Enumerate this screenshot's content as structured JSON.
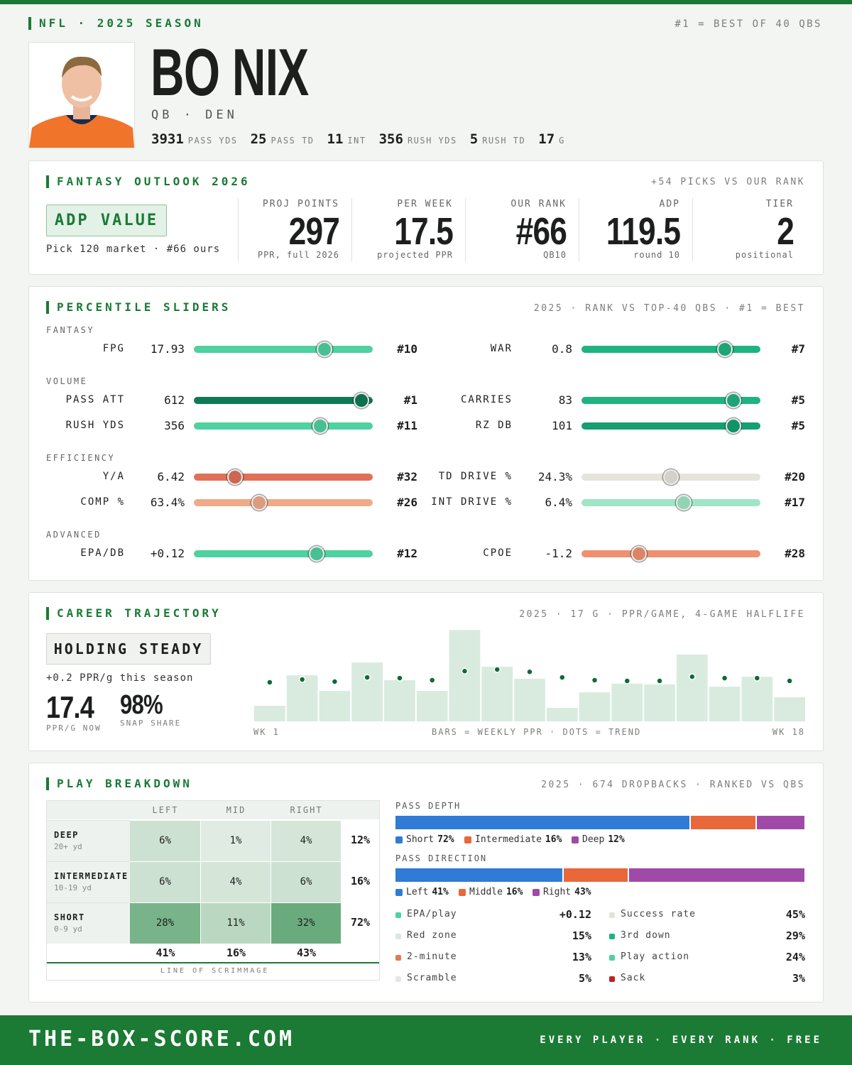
{
  "header": {
    "league": "NFL · 2025 SEASON",
    "rank_note": "#1 = BEST OF 40 QBS",
    "name": "BO NIX",
    "position": "QB · DEN",
    "stats": [
      {
        "value": "3931",
        "label": "PASS YDS"
      },
      {
        "value": "25",
        "label": "PASS TD"
      },
      {
        "value": "11",
        "label": "INT"
      },
      {
        "value": "356",
        "label": "RUSH YDS"
      },
      {
        "value": "5",
        "label": "RUSH TD"
      },
      {
        "value": "17",
        "label": "G"
      }
    ]
  },
  "outlook": {
    "title": "FANTASY OUTLOOK 2026",
    "note": "+54 PICKS VS OUR RANK",
    "badge": "ADP VALUE",
    "badge_sub": "Pick 120 market · #66 ours",
    "metrics": [
      {
        "label": "PROJ POINTS",
        "value": "297",
        "sub": "PPR, full 2026"
      },
      {
        "label": "PER WEEK",
        "value": "17.5",
        "sub": "projected PPR"
      },
      {
        "label": "OUR RANK",
        "value": "#66",
        "sub": "QB10"
      },
      {
        "label": "ADP",
        "value": "119.5",
        "sub": "round 10"
      },
      {
        "label": "TIER",
        "value": "2",
        "sub": "positional"
      }
    ]
  },
  "sliders": {
    "title": "PERCENTILE SLIDERS",
    "note": "2025 · RANK VS TOP-40 QBS · #1 = BEST",
    "groups": [
      {
        "name": "FANTASY",
        "items": [
          {
            "label": "FPG",
            "value": "17.93",
            "rank": "#10",
            "percentile": 77,
            "color": "#4fd1a0"
          },
          {
            "label": "WAR",
            "value": "0.8",
            "rank": "#7",
            "percentile": 85,
            "color": "#1fb380"
          }
        ]
      },
      {
        "name": "VOLUME",
        "items": [
          {
            "label": "PASS ATT",
            "value": "612",
            "rank": "#1",
            "percentile": 100,
            "color": "#0e7a55"
          },
          {
            "label": "CARRIES",
            "value": "83",
            "rank": "#5",
            "percentile": 90,
            "color": "#1fb380"
          },
          {
            "label": "RUSH YDS",
            "value": "356",
            "rank": "#11",
            "percentile": 74,
            "color": "#4fd1a0"
          },
          {
            "label": "RZ DB",
            "value": "101",
            "rank": "#5",
            "percentile": 90,
            "color": "#14a070"
          }
        ]
      },
      {
        "name": "EFFICIENCY",
        "items": [
          {
            "label": "Y/A",
            "value": "6.42",
            "rank": "#32",
            "percentile": 21,
            "color": "#e07058"
          },
          {
            "label": "TD DRIVE %",
            "value": "24.3%",
            "rank": "#20",
            "percentile": 51,
            "color": "#e4e4dc"
          },
          {
            "label": "COMP %",
            "value": "63.4%",
            "rank": "#26",
            "percentile": 36,
            "color": "#efaa88"
          },
          {
            "label": "INT DRIVE %",
            "value": "6.4%",
            "rank": "#17",
            "percentile": 59,
            "color": "#9ee6c5"
          }
        ]
      },
      {
        "name": "ADVANCED",
        "items": [
          {
            "label": "EPA/DB",
            "value": "+0.12",
            "rank": "#12",
            "percentile": 72,
            "color": "#4fd1a0"
          },
          {
            "label": "CPOE",
            "value": "-1.2",
            "rank": "#28",
            "percentile": 31,
            "color": "#ef9070"
          }
        ]
      }
    ]
  },
  "trajectory": {
    "title": "CAREER TRAJECTORY",
    "note": "2025 · 17 G · PPR/GAME, 4-GAME HALFLIFE",
    "badge": "HOLDING STEADY",
    "change": "+0.2 PPR/g this season",
    "ppr_now": "17.4",
    "ppr_now_label": "PPR/G NOW",
    "snap": "98%",
    "snap_label": "SNAP SHARE",
    "chart": {
      "type": "bar",
      "values": [
        6.7,
        19.8,
        13.1,
        25.3,
        17.7,
        13.1,
        39.3,
        23.5,
        18.3,
        5.8,
        12.5,
        16.2,
        15.9,
        28.7,
        14.9,
        19.2,
        10.4
      ],
      "trend": [
        16.8,
        18.0,
        17.1,
        18.9,
        18.6,
        17.7,
        21.6,
        22.3,
        21.3,
        18.9,
        17.7,
        17.4,
        17.4,
        19.2,
        18.6,
        18.6,
        17.4
      ],
      "ylim": [
        0,
        40
      ],
      "bar_color": "#d9ebdf",
      "trend_color": "#0e6b32",
      "start_label": "WK 1",
      "end_label": "WK 18",
      "caption": "BARS = WEEKLY PPR · DOTS = TREND"
    }
  },
  "breakdown": {
    "title": "PLAY BREAKDOWN",
    "note": "2025 · 674 DROPBACKS · RANKED VS QBS",
    "table": {
      "columns": [
        "LEFT",
        "MID",
        "RIGHT"
      ],
      "rows": [
        {
          "label": "DEEP",
          "sub": "20+ yd",
          "cells": [
            "6%",
            "1%",
            "4%"
          ],
          "total": "12%"
        },
        {
          "label": "INTERMEDIATE",
          "sub": "10-19 yd",
          "cells": [
            "6%",
            "4%",
            "6%"
          ],
          "total": "16%"
        },
        {
          "label": "SHORT",
          "sub": "0-9 yd",
          "cells": [
            "28%",
            "11%",
            "32%"
          ],
          "total": "72%"
        }
      ],
      "totals": [
        "41%",
        "16%",
        "43%"
      ],
      "footer": "LINE OF SCRIMMAGE"
    },
    "depth": {
      "title": "PASS DEPTH",
      "names": [
        "Short",
        "Intermediate",
        "Deep"
      ],
      "values": [
        72,
        16,
        12
      ],
      "value_labels": [
        "72%",
        "16%",
        "12%"
      ],
      "colors": [
        "#2f7bd6",
        "#e8683a",
        "#a04aa8"
      ]
    },
    "direction": {
      "title": "PASS DIRECTION",
      "names": [
        "Left",
        "Middle",
        "Right"
      ],
      "values": [
        41,
        16,
        43
      ],
      "value_labels": [
        "41%",
        "16%",
        "43%"
      ],
      "colors": [
        "#2f7bd6",
        "#e8683a",
        "#a04aa8"
      ]
    },
    "stats": [
      {
        "label": "EPA/play",
        "value": "+0.12",
        "color": "#4fd1a0"
      },
      {
        "label": "Success rate",
        "value": "45%",
        "color": "#eadfd3"
      },
      {
        "label": "Red zone",
        "value": "15%",
        "color": "#d9e7dd"
      },
      {
        "label": "3rd down",
        "value": "29%",
        "color": "#1fb380"
      },
      {
        "label": "2-minute",
        "value": "13%",
        "color": "#e07a52"
      },
      {
        "label": "Play action",
        "value": "24%",
        "color": "#4fd1a0"
      },
      {
        "label": "Scramble",
        "value": "5%",
        "color": "#e4e8e4"
      },
      {
        "label": "Sack",
        "value": "3%",
        "color": "#c0202c"
      }
    ]
  },
  "footer": {
    "site": "THE-BOX-SCORE.COM",
    "tagline": "EVERY PLAYER · EVERY RANK · FREE"
  }
}
